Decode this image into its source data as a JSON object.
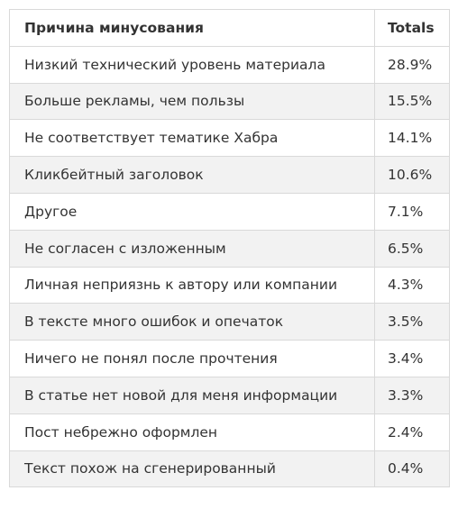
{
  "chart_data": {
    "type": "table",
    "columns": [
      "Причина минусования",
      "Totals"
    ],
    "rows": [
      {
        "reason": "Низкий технический уровень материала",
        "total": "28.9%"
      },
      {
        "reason": "Больше рекламы, чем пользы",
        "total": "15.5%"
      },
      {
        "reason": "Не соответствует тематике Хабра",
        "total": "14.1%"
      },
      {
        "reason": "Кликбейтный заголовок",
        "total": "10.6%"
      },
      {
        "reason": "Другое",
        "total": "7.1%"
      },
      {
        "reason": "Не согласен с изложенным",
        "total": "6.5%"
      },
      {
        "reason": "Личная неприязнь к автору или компании",
        "total": "4.3%"
      },
      {
        "reason": "В тексте много ошибок и опечаток",
        "total": "3.5%"
      },
      {
        "reason": "Ничего не понял после прочтения",
        "total": "3.4%"
      },
      {
        "reason": "В статье нет новой для меня информации",
        "total": "3.3%"
      },
      {
        "reason": "Пост небрежно оформлен",
        "total": "2.4%"
      },
      {
        "reason": "Текст похож на сгенерированный",
        "total": "0.4%"
      }
    ],
    "values": [
      28.9,
      15.5,
      14.1,
      10.6,
      7.1,
      6.5,
      4.3,
      3.5,
      3.4,
      3.3,
      2.4,
      0.4
    ],
    "unit": "%"
  },
  "colors": {
    "border": "#d9d9d9",
    "stripe": "#f2f2f2",
    "text": "#333333",
    "background": "#ffffff"
  }
}
